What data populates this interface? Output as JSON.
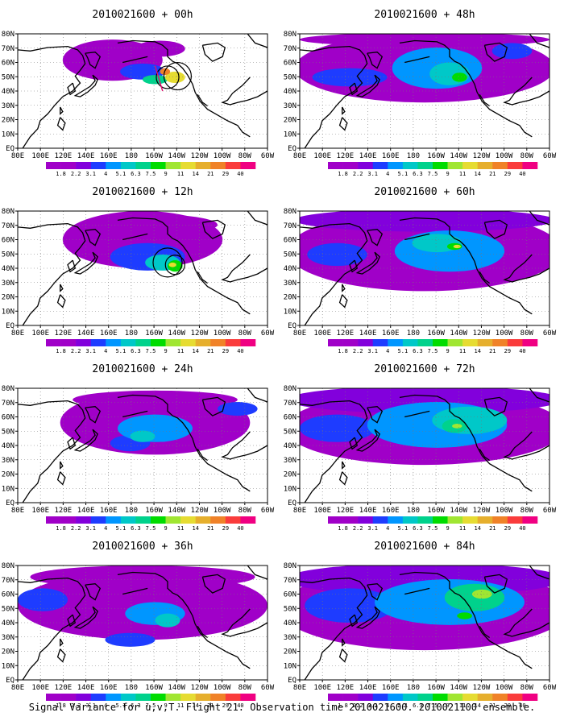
{
  "caption": "Signal Variance for u,v,T. Flight 21. Observation time 2010021600. 2010021100 ensemble.",
  "lon_labels": [
    "80E",
    "100E",
    "120E",
    "140E",
    "160E",
    "180",
    "160W",
    "140W",
    "120W",
    "100W",
    "80W",
    "60W"
  ],
  "lat_labels": [
    "80N",
    "70N",
    "60N",
    "50N",
    "40N",
    "30N",
    "20N",
    "10N",
    "EQ"
  ],
  "colorbar": {
    "levels": [
      "1.8",
      "2.2",
      "3.1",
      "4",
      "5.1",
      "6.3",
      "7.5",
      "9",
      "11",
      "14",
      "21",
      "29",
      "40"
    ],
    "colors": [
      "#a000c8",
      "#8200dc",
      "#1e3cff",
      "#0096ff",
      "#00c8c8",
      "#00d28c",
      "#00dc00",
      "#a0e632",
      "#e6dc32",
      "#e6af2d",
      "#f08228",
      "#fa3c3c",
      "#f00082"
    ]
  },
  "panels": [
    {
      "title": "2010021600 + 00h",
      "hour": 0
    },
    {
      "title": "2010021600 + 48h",
      "hour": 48
    },
    {
      "title": "2010021600 + 12h",
      "hour": 12
    },
    {
      "title": "2010021600 + 60h",
      "hour": 60
    },
    {
      "title": "2010021600 + 24h",
      "hour": 24
    },
    {
      "title": "2010021600 + 72h",
      "hour": 72
    },
    {
      "title": "2010021600 + 36h",
      "hour": 36
    },
    {
      "title": "2010021600 + 84h",
      "hour": 84
    }
  ]
}
